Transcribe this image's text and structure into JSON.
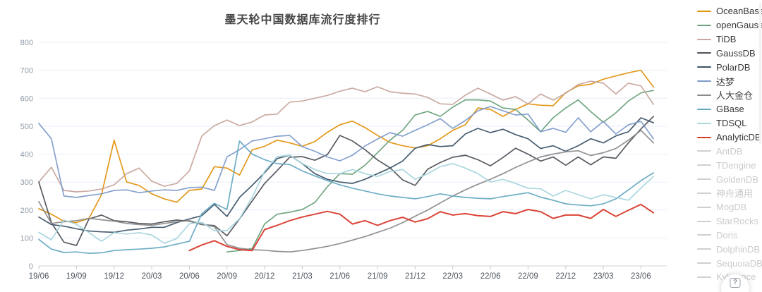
{
  "title": "墨天轮中国数据库流行度排行",
  "help_button": {
    "glyph": "?"
  },
  "chart_data": {
    "type": "line",
    "title": "墨天轮中国数据库流行度排行",
    "x_start_month": "19/06",
    "x_tick_labels": [
      "19/06",
      "19/09",
      "19/12",
      "20/03",
      "20/06",
      "20/09",
      "20/12",
      "21/03",
      "21/06",
      "21/09",
      "21/12",
      "22/03",
      "22/06",
      "22/09",
      "22/12",
      "23/03",
      "23/06"
    ],
    "months_total": 50,
    "ylim": [
      0,
      800
    ],
    "y_tick_step": 100,
    "grid": true,
    "legend_position": "right",
    "series": [
      {
        "name": "OceanBase",
        "color": "#E1930F",
        "values": [
          205,
          185,
          160,
          155,
          170,
          255,
          450,
          300,
          288,
          258,
          240,
          228,
          270,
          275,
          355,
          350,
          325,
          415,
          428,
          450,
          440,
          428,
          445,
          478,
          505,
          518,
          495,
          467,
          442,
          430,
          422,
          430,
          455,
          485,
          505,
          565,
          560,
          535,
          560,
          580,
          575,
          573,
          620,
          644,
          650,
          668,
          680,
          691,
          700,
          640
        ]
      },
      {
        "name": "openGauss",
        "color": "#6BA27C",
        "values": [
          null,
          null,
          null,
          null,
          null,
          null,
          null,
          null,
          null,
          null,
          null,
          null,
          null,
          null,
          null,
          50,
          55,
          62,
          150,
          185,
          192,
          202,
          227,
          283,
          330,
          328,
          360,
          405,
          450,
          485,
          540,
          553,
          535,
          568,
          594,
          594,
          590,
          565,
          560,
          522,
          480,
          530,
          565,
          594,
          552,
          514,
          548,
          590,
          619,
          628
        ]
      },
      {
        "name": "TiDB",
        "color": "#C8A69E",
        "values": [
          300,
          353,
          270,
          265,
          268,
          275,
          290,
          330,
          350,
          303,
          285,
          295,
          340,
          465,
          502,
          522,
          502,
          515,
          540,
          543,
          586,
          590,
          600,
          610,
          625,
          636,
          623,
          641,
          623,
          618,
          615,
          603,
          580,
          578,
          611,
          636,
          615,
          593,
          606,
          580,
          615,
          593,
          618,
          649,
          661,
          654,
          615,
          654,
          644,
          578
        ]
      },
      {
        "name": "GaussDB",
        "color": "#50525A",
        "values": [
          300,
          155,
          85,
          73,
          168,
          182,
          162,
          158,
          152,
          150,
          158,
          164,
          160,
          148,
          144,
          108,
          168,
          232,
          295,
          341,
          389,
          391,
          378,
          398,
          467,
          447,
          416,
          379,
          351,
          308,
          288,
          346,
          370,
          389,
          396,
          380,
          358,
          388,
          421,
          400,
          375,
          390,
          360,
          390,
          362,
          390,
          385,
          440,
          490,
          535
        ]
      },
      {
        "name": "PolarDB",
        "color": "#3E5468",
        "values": [
          175,
          148,
          142,
          133,
          125,
          122,
          120,
          128,
          132,
          138,
          138,
          155,
          168,
          180,
          220,
          177,
          245,
          288,
          333,
          384,
          396,
          366,
          330,
          310,
          300,
          295,
          310,
          330,
          350,
          375,
          421,
          434,
          427,
          430,
          472,
          492,
          477,
          489,
          470,
          455,
          420,
          430,
          410,
          430,
          455,
          440,
          465,
          480,
          530,
          512
        ]
      },
      {
        "name": "达梦",
        "color": "#7F9CCB",
        "values": [
          510,
          455,
          250,
          245,
          252,
          258,
          270,
          272,
          262,
          268,
          272,
          270,
          280,
          282,
          270,
          390,
          416,
          447,
          455,
          464,
          467,
          427,
          410,
          390,
          376,
          396,
          429,
          454,
          477,
          464,
          485,
          505,
          527,
          492,
          520,
          555,
          570,
          555,
          540,
          543,
          480,
          492,
          478,
          530,
          480,
          517,
          472,
          505,
          517,
          455
        ]
      },
      {
        "name": "人大金仓",
        "color": "#8C8C8C",
        "values": [
          230,
          152,
          158,
          162,
          170,
          165,
          160,
          152,
          148,
          145,
          152,
          158,
          162,
          150,
          140,
          76,
          63,
          58,
          56,
          52,
          50,
          55,
          62,
          70,
          80,
          92,
          105,
          120,
          135,
          155,
          178,
          200,
          225,
          250,
          272,
          292,
          310,
          330,
          352,
          372,
          390,
          400,
          408,
          412,
          395,
          405,
          420,
          450,
          485,
          440
        ]
      },
      {
        "name": "GBase",
        "color": "#66A9C3",
        "values": [
          95,
          60,
          48,
          50,
          45,
          47,
          55,
          58,
          60,
          63,
          68,
          78,
          88,
          187,
          224,
          202,
          447,
          400,
          380,
          366,
          363,
          340,
          322,
          305,
          290,
          278,
          268,
          258,
          250,
          245,
          240,
          248,
          258,
          250,
          245,
          242,
          240,
          248,
          255,
          262,
          246,
          235,
          222,
          218,
          215,
          222,
          240,
          272,
          305,
          333
        ]
      },
      {
        "name": "TDSQL",
        "color": "#A7D5DD",
        "values": [
          120,
          93,
          164,
          149,
          119,
          88,
          119,
          114,
          119,
          111,
          81,
          98,
          151,
          156,
          126,
          126,
          169,
          245,
          338,
          391,
          396,
          366,
          345,
          330,
          330,
          345,
          330,
          320,
          338,
          345,
          310,
          330,
          355,
          366,
          350,
          330,
          300,
          310,
          295,
          278,
          276,
          250,
          270,
          255,
          240,
          255,
          245,
          235,
          278,
          320
        ]
      },
      {
        "name": "AnalyticDB",
        "color": "#D93A2D",
        "values": [
          null,
          null,
          null,
          null,
          null,
          null,
          null,
          null,
          null,
          null,
          null,
          null,
          55,
          75,
          90,
          70,
          58,
          55,
          130,
          145,
          162,
          175,
          185,
          195,
          185,
          150,
          162,
          145,
          162,
          174,
          157,
          169,
          194,
          182,
          187,
          180,
          177,
          194,
          187,
          202,
          194,
          170,
          182,
          182,
          170,
          202,
          177,
          199,
          220,
          190
        ]
      }
    ],
    "disabled_legend": [
      "AntDB",
      "TDengine",
      "GoldenDB",
      "神舟通用",
      "MogDB",
      "StarRocks",
      "Doris",
      "DolphinDB",
      "SequoiaDB",
      "Kyligence"
    ],
    "disabled_color": "#cfcfcf"
  }
}
